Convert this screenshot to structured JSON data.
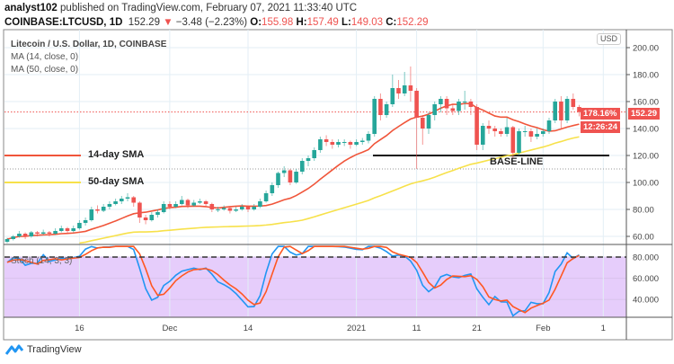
{
  "header": {
    "author": "analyst102",
    "published": "published on TradingView.com, February 07, 2021 11:33:40 UTC",
    "symbol": "COINBASE:LTCUSD, 1D",
    "last": "152.29",
    "change": "−3.48 (−2.23%)",
    "o_label": "O:",
    "o": "155.98",
    "h_label": "H:",
    "h": "157.49",
    "l_label": "L:",
    "l": "149.03",
    "c_label": "C:",
    "c": "152.29"
  },
  "legend": {
    "title": "Litecoin / U.S. Dollar, 1D, COINBASE",
    "ma14": "MA (14, close, 0)",
    "ma50": "MA (50, close, 0)",
    "stoch": "Stoch (14, 3, 3)"
  },
  "annotations": {
    "sma14_label": "14-day SMA",
    "sma50_label": "50-day SMA",
    "baseline_label": "BASE-LINE",
    "baseline_price": 120
  },
  "price_tags": {
    "percent": "178.16%",
    "price": "152.29",
    "countdown": "12:26:24",
    "currency": "USD"
  },
  "footer": {
    "brand": "TradingView"
  },
  "colors": {
    "up": "#26a69a",
    "down": "#ef5350",
    "ma14": "#f0553a",
    "ma50": "#f7e14a",
    "stoch_k": "#2196f3",
    "stoch_d": "#ff5722",
    "stoch_band": "#e6cdfb"
  },
  "chart_data": {
    "type": "candlestick",
    "price_axis": {
      "ticks": [
        "60.00",
        "80.00",
        "100.00",
        "120.00",
        "140.00",
        "160.00",
        "180.00",
        "200.00"
      ],
      "range": [
        52,
        212
      ]
    },
    "stoch_axis": {
      "ticks": [
        "40.000",
        "60.000",
        "80.000"
      ],
      "band": [
        20,
        80
      ]
    },
    "time_axis": {
      "ticks": [
        {
          "label": "16",
          "day": 12
        },
        {
          "label": "Dec",
          "day": 27
        },
        {
          "label": "14",
          "day": 40
        },
        {
          "label": "2021",
          "day": 58
        },
        {
          "label": "11",
          "day": 68
        },
        {
          "label": "21",
          "day": 78
        },
        {
          "label": "Feb",
          "day": 89
        },
        {
          "label": "1",
          "day": 99
        }
      ]
    },
    "first_date": "2020-11-04",
    "candles": [
      [
        56,
        59,
        55,
        58
      ],
      [
        58,
        61,
        57,
        60
      ],
      [
        60,
        64,
        59,
        62
      ],
      [
        62,
        63,
        58,
        60
      ],
      [
        60,
        64,
        59,
        63
      ],
      [
        63,
        64,
        60,
        62
      ],
      [
        62,
        65,
        61,
        63
      ],
      [
        63,
        64,
        60,
        62
      ],
      [
        62,
        66,
        61,
        64
      ],
      [
        64,
        68,
        63,
        66
      ],
      [
        66,
        67,
        62,
        64
      ],
      [
        64,
        68,
        63,
        66
      ],
      [
        66,
        72,
        65,
        70
      ],
      [
        70,
        74,
        68,
        72
      ],
      [
        72,
        82,
        71,
        80
      ],
      [
        80,
        83,
        77,
        79
      ],
      [
        79,
        84,
        78,
        82
      ],
      [
        82,
        86,
        80,
        84
      ],
      [
        84,
        88,
        83,
        86
      ],
      [
        86,
        90,
        84,
        88
      ],
      [
        88,
        92,
        86,
        89
      ],
      [
        89,
        90,
        82,
        85
      ],
      [
        85,
        86,
        70,
        74
      ],
      [
        74,
        76,
        69,
        72
      ],
      [
        72,
        78,
        71,
        76
      ],
      [
        76,
        80,
        74,
        78
      ],
      [
        78,
        86,
        77,
        84
      ],
      [
        84,
        86,
        80,
        82
      ],
      [
        82,
        86,
        81,
        84
      ],
      [
        84,
        90,
        83,
        87
      ],
      [
        87,
        88,
        81,
        83
      ],
      [
        83,
        87,
        82,
        85
      ],
      [
        85,
        88,
        84,
        86
      ],
      [
        86,
        87,
        82,
        84
      ],
      [
        84,
        85,
        78,
        80
      ],
      [
        80,
        82,
        78,
        80
      ],
      [
        80,
        83,
        79,
        81
      ],
      [
        81,
        82,
        77,
        79
      ],
      [
        79,
        82,
        78,
        80
      ],
      [
        80,
        84,
        79,
        82
      ],
      [
        82,
        83,
        78,
        80
      ],
      [
        80,
        84,
        79,
        82
      ],
      [
        82,
        88,
        81,
        86
      ],
      [
        86,
        94,
        85,
        92
      ],
      [
        92,
        100,
        90,
        98
      ],
      [
        98,
        108,
        96,
        107
      ],
      [
        107,
        112,
        104,
        109
      ],
      [
        109,
        110,
        98,
        100
      ],
      [
        100,
        110,
        99,
        108
      ],
      [
        108,
        118,
        106,
        116
      ],
      [
        116,
        120,
        112,
        118
      ],
      [
        118,
        126,
        116,
        124
      ],
      [
        124,
        134,
        122,
        132
      ],
      [
        132,
        135,
        127,
        130
      ],
      [
        130,
        132,
        125,
        128
      ],
      [
        128,
        132,
        126,
        130
      ],
      [
        130,
        132,
        127,
        130
      ],
      [
        130,
        131,
        125,
        128
      ],
      [
        128,
        132,
        127,
        130
      ],
      [
        130,
        133,
        128,
        131
      ],
      [
        131,
        138,
        129,
        136
      ],
      [
        136,
        164,
        134,
        162
      ],
      [
        162,
        166,
        146,
        150
      ],
      [
        150,
        160,
        148,
        158
      ],
      [
        158,
        180,
        156,
        170
      ],
      [
        170,
        176,
        162,
        166
      ],
      [
        166,
        182,
        164,
        172
      ],
      [
        172,
        186,
        160,
        168
      ],
      [
        168,
        170,
        110,
        148
      ],
      [
        148,
        150,
        128,
        140
      ],
      [
        140,
        152,
        136,
        150
      ],
      [
        150,
        160,
        146,
        158
      ],
      [
        158,
        164,
        152,
        162
      ],
      [
        162,
        164,
        150,
        155
      ],
      [
        155,
        158,
        150,
        153
      ],
      [
        153,
        162,
        150,
        160
      ],
      [
        160,
        168,
        154,
        160
      ],
      [
        160,
        162,
        150,
        156
      ],
      [
        156,
        158,
        124,
        128
      ],
      [
        128,
        144,
        124,
        142
      ],
      [
        142,
        146,
        136,
        140
      ],
      [
        140,
        142,
        134,
        138
      ],
      [
        138,
        140,
        134,
        136
      ],
      [
        136,
        148,
        134,
        141
      ],
      [
        141,
        142,
        118,
        122
      ],
      [
        122,
        140,
        120,
        138
      ],
      [
        138,
        142,
        134,
        138
      ],
      [
        138,
        140,
        130,
        134
      ],
      [
        134,
        140,
        132,
        136
      ],
      [
        136,
        140,
        134,
        138
      ],
      [
        138,
        148,
        136,
        146
      ],
      [
        146,
        162,
        144,
        160
      ],
      [
        160,
        164,
        140,
        146
      ],
      [
        146,
        164,
        144,
        162
      ],
      [
        162,
        166,
        154,
        156
      ],
      [
        155.98,
        157.49,
        149.03,
        152.29
      ]
    ]
  }
}
